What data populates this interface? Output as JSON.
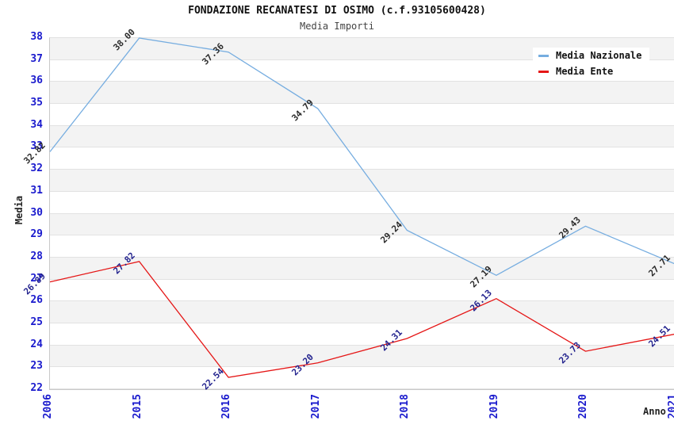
{
  "title": "FONDAZIONE RECANATESI DI OSIMO (c.f.93105600428)",
  "subtitle": "Media Importi",
  "colors": {
    "tick_label": "#1a1acd",
    "grid_band": "#f3f3f3",
    "grid_line": "#e2e2e2",
    "axis_border": "#c9c9c9",
    "nazionale_line": "#76ade0",
    "ente_line": "#e51616",
    "nazionale_point_label": "#2b2b2b",
    "ente_point_label": "#23238e"
  },
  "chart_data": {
    "type": "line",
    "x": [
      "2006",
      "2015",
      "2016",
      "2017",
      "2018",
      "2019",
      "2020",
      "2021"
    ],
    "xlabel": "Anno",
    "ylabel": "Media",
    "ylim": [
      22,
      38
    ],
    "ytick_step": 1,
    "grid": "horizontal alternating bands with lines at every integer",
    "legend_position": "top-right",
    "point_labels": "shown, rotated 45deg, two decimals",
    "series": [
      {
        "name": "Media Nazionale",
        "color": "#76ade0",
        "label_color": "#2b2b2b",
        "values": [
          32.82,
          38.0,
          37.36,
          34.79,
          29.24,
          27.19,
          29.43,
          27.71
        ]
      },
      {
        "name": "Media Ente",
        "color": "#e51616",
        "label_color": "#23238e",
        "values": [
          26.89,
          27.82,
          22.54,
          23.2,
          24.31,
          26.13,
          23.73,
          24.51
        ]
      }
    ]
  }
}
